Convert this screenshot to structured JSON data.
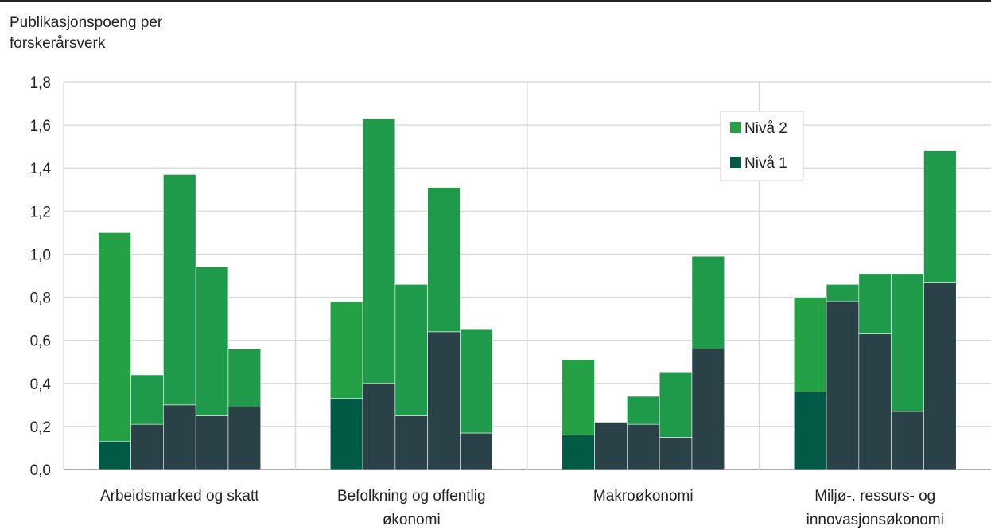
{
  "chart_data": {
    "type": "bar",
    "stacked": true,
    "ylabel_line1": "Publikasjonspoeng per",
    "ylabel_line2": "forskerårsverk",
    "ylim": [
      0,
      1.8
    ],
    "yticks": [
      "0,0",
      "0,2",
      "0,4",
      "0,6",
      "0,8",
      "1,0",
      "1,2",
      "1,4",
      "1,6",
      "1,8"
    ],
    "grid": true,
    "legend_position": "top-right",
    "categories": [
      {
        "label_lines": [
          "Arbeidsmarked og skatt"
        ],
        "bars": [
          {
            "n1": 0.13,
            "n2": 0.97
          },
          {
            "n1": 0.21,
            "n2": 0.23
          },
          {
            "n1": 0.3,
            "n2": 1.07
          },
          {
            "n1": 0.25,
            "n2": 0.69
          },
          {
            "n1": 0.29,
            "n2": 0.27
          }
        ]
      },
      {
        "label_lines": [
          "Befolkning og offentlig",
          "økonomi"
        ],
        "bars": [
          {
            "n1": 0.33,
            "n2": 0.45
          },
          {
            "n1": 0.4,
            "n2": 1.23
          },
          {
            "n1": 0.25,
            "n2": 0.61
          },
          {
            "n1": 0.64,
            "n2": 0.67
          },
          {
            "n1": 0.17,
            "n2": 0.48
          }
        ]
      },
      {
        "label_lines": [
          "Makroøkonomi"
        ],
        "bars": [
          {
            "n1": 0.16,
            "n2": 0.35
          },
          {
            "n1": 0.22,
            "n2": 0.0
          },
          {
            "n1": 0.21,
            "n2": 0.13
          },
          {
            "n1": 0.15,
            "n2": 0.3
          },
          {
            "n1": 0.56,
            "n2": 0.43
          }
        ]
      },
      {
        "label_lines": [
          "Miljø-. ressurs- og",
          "innovasjonsøkonomi"
        ],
        "bars": [
          {
            "n1": 0.36,
            "n2": 0.44
          },
          {
            "n1": 0.78,
            "n2": 0.08
          },
          {
            "n1": 0.63,
            "n2": 0.28
          },
          {
            "n1": 0.27,
            "n2": 0.64
          },
          {
            "n1": 0.87,
            "n2": 0.61
          }
        ]
      }
    ],
    "series": [
      {
        "key": "n2",
        "name": "Nivå 2",
        "color": "#24a045",
        "color_alt": "#1e9a4a"
      },
      {
        "key": "n1",
        "name": "Nivå 1",
        "color": "#2a4147",
        "color_first": "#005a46"
      }
    ]
  }
}
